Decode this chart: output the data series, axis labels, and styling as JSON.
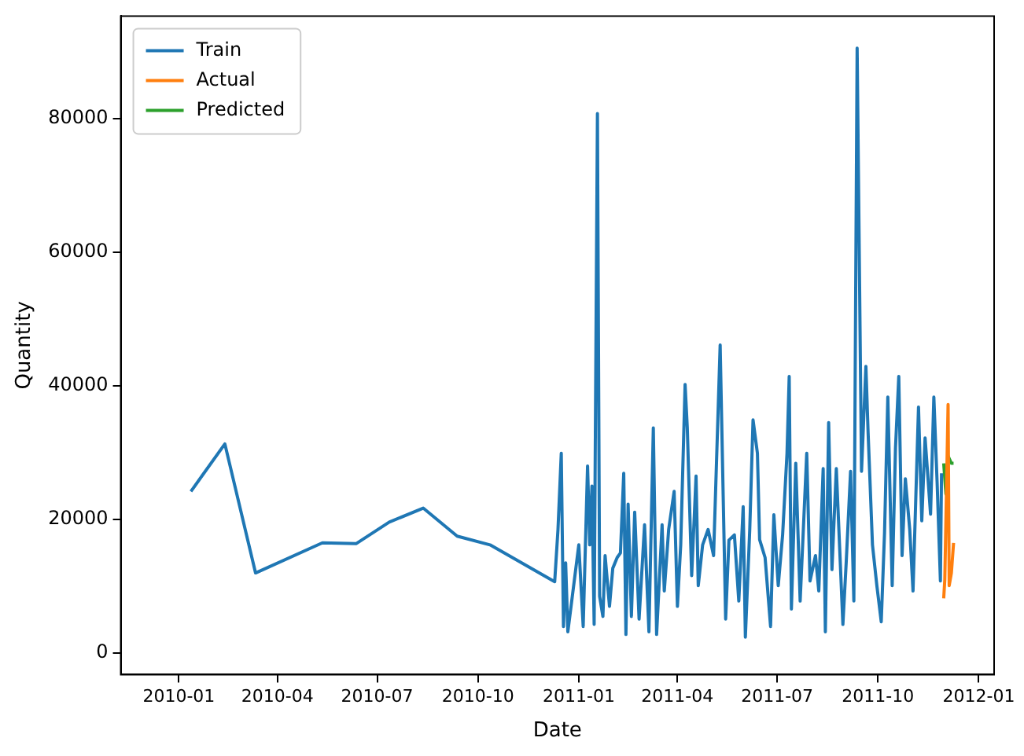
{
  "chart_data": {
    "type": "line",
    "xlabel": "Date",
    "ylabel": "Quantity",
    "legend": "top left",
    "grid": false,
    "marker": "none",
    "xlim": [
      "2009-11-09",
      "2012-01-15"
    ],
    "xticks": [
      "2010-01",
      "2010-04",
      "2010-07",
      "2010-10",
      "2011-01",
      "2011-04",
      "2011-07",
      "2011-10",
      "2012-01"
    ],
    "ylim": [
      -3200,
      95300
    ],
    "yticks": [
      0,
      20000,
      40000,
      60000,
      80000
    ],
    "series": [
      {
        "name": "Train",
        "color": "#1f77b4",
        "x": [
          "2010-01-12",
          "2010-02-12",
          "2010-03-12",
          "2010-05-12",
          "2010-06-12",
          "2010-07-12",
          "2010-08-12",
          "2010-09-12",
          "2010-10-12",
          "2010-12-10",
          "2010-12-13",
          "2010-12-16",
          "2010-12-18",
          "2010-12-20",
          "2010-12-22",
          "2011-01-01",
          "2011-01-05",
          "2011-01-09",
          "2011-01-11",
          "2011-01-13",
          "2011-01-15",
          "2011-01-18",
          "2011-01-20",
          "2011-01-23",
          "2011-01-25",
          "2011-01-29",
          "2011-02-01",
          "2011-02-05",
          "2011-02-08",
          "2011-02-11",
          "2011-02-13",
          "2011-02-15",
          "2011-02-18",
          "2011-02-21",
          "2011-02-25",
          "2011-03-02",
          "2011-03-06",
          "2011-03-10",
          "2011-03-13",
          "2011-03-18",
          "2011-03-20",
          "2011-03-24",
          "2011-03-29",
          "2011-04-01",
          "2011-04-04",
          "2011-04-08",
          "2011-04-10",
          "2011-04-14",
          "2011-04-18",
          "2011-04-20",
          "2011-04-24",
          "2011-04-29",
          "2011-05-04",
          "2011-05-10",
          "2011-05-15",
          "2011-05-18",
          "2011-05-23",
          "2011-05-27",
          "2011-05-31",
          "2011-06-02",
          "2011-06-06",
          "2011-06-09",
          "2011-06-13",
          "2011-06-15",
          "2011-06-20",
          "2011-06-25",
          "2011-06-28",
          "2011-07-02",
          "2011-07-06",
          "2011-07-10",
          "2011-07-12",
          "2011-07-14",
          "2011-07-18",
          "2011-07-22",
          "2011-07-28",
          "2011-07-31",
          "2011-08-05",
          "2011-08-08",
          "2011-08-12",
          "2011-08-14",
          "2011-08-17",
          "2011-08-20",
          "2011-08-24",
          "2011-08-30",
          "2011-09-02",
          "2011-09-06",
          "2011-09-09",
          "2011-09-12",
          "2011-09-16",
          "2011-09-20",
          "2011-09-22",
          "2011-09-26",
          "2011-09-30",
          "2011-10-04",
          "2011-10-07",
          "2011-10-10",
          "2011-10-14",
          "2011-10-17",
          "2011-10-20",
          "2011-10-23",
          "2011-10-26",
          "2011-10-30",
          "2011-11-02",
          "2011-11-07",
          "2011-11-10",
          "2011-11-13",
          "2011-11-18",
          "2011-11-21",
          "2011-11-24",
          "2011-11-27",
          "2011-11-28"
        ],
        "values": [
          24200,
          31300,
          12000,
          16500,
          16400,
          19600,
          21700,
          17500,
          16200,
          10700,
          18500,
          29900,
          4000,
          13500,
          3200,
          16200,
          4000,
          28000,
          16200,
          25000,
          4300,
          80700,
          8500,
          5500,
          14600,
          7000,
          12700,
          14300,
          15000,
          26900,
          2800,
          22300,
          5500,
          21100,
          5100,
          19200,
          3200,
          33700,
          2800,
          19200,
          9300,
          18500,
          24200,
          7000,
          16200,
          40200,
          33700,
          11600,
          26500,
          10100,
          16200,
          18500,
          14600,
          46100,
          5100,
          16900,
          17700,
          7800,
          21900,
          2400,
          18500,
          34900,
          29900,
          17000,
          14300,
          4000,
          20700,
          10100,
          17700,
          29900,
          41400,
          6600,
          28400,
          7800,
          29900,
          10800,
          14600,
          9300,
          27600,
          3200,
          34500,
          12500,
          27600,
          4300,
          13500,
          27200,
          7800,
          90500,
          27200,
          42900,
          33000,
          16200,
          10100,
          4700,
          18000,
          38300,
          10100,
          30700,
          41400,
          14600,
          26100,
          18500,
          9300,
          36800,
          19800,
          32200,
          20800,
          38300,
          25500,
          10800,
          26900
        ]
      },
      {
        "name": "Actual",
        "color": "#ff7f0e",
        "x": [
          "2011-11-30",
          "2011-12-01",
          "2011-12-04",
          "2011-12-05",
          "2011-12-07",
          "2011-12-09"
        ],
        "values": [
          8200,
          11000,
          37200,
          10100,
          12000,
          16500
        ]
      },
      {
        "name": "Predicted",
        "color": "#2ca02c",
        "x": [
          "2011-11-30",
          "2011-12-02",
          "2011-12-04",
          "2011-12-07",
          "2011-12-09"
        ],
        "values": [
          28400,
          23800,
          29500,
          28400,
          28400
        ]
      }
    ]
  }
}
